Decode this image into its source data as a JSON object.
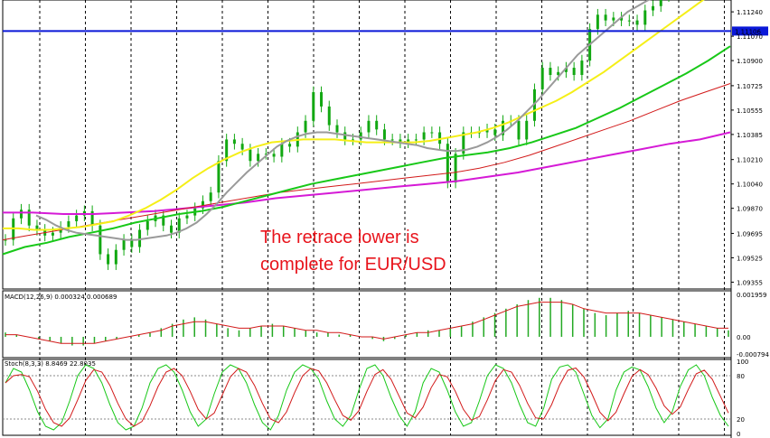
{
  "chart_data": [
    {
      "type": "candlestick",
      "title": "",
      "annotation": [
        "The retrace lower is",
        "complete for EUR/USD"
      ],
      "yticks": [
        "1.11240",
        "1.11070",
        "1.10900",
        "1.10725",
        "1.10555",
        "1.10385",
        "1.10210",
        "1.10040",
        "1.09870",
        "1.09695",
        "1.09525",
        "1.09355"
      ],
      "current_price": "1.11106",
      "ylim": [
        1.0932,
        1.1131
      ],
      "grid": "vertical dashed",
      "colors": {
        "bull_candle": "#12a812",
        "price_line": "#0a18d8",
        "price_label_bg": "#0a18d8",
        "ma_fast": "#9a9a9a",
        "ma_mid": "#f5ef17",
        "ma_slow": "#18c818",
        "ma_long": "#d21a1a",
        "ma_longest": "#d51ad6"
      },
      "price_close": [
        1.0965,
        1.098,
        1.0986,
        1.0975,
        1.0972,
        1.0968,
        1.097,
        1.0974,
        1.0978,
        1.0982,
        1.0985,
        1.0975,
        1.0955,
        1.0948,
        1.0958,
        1.0965,
        1.096,
        1.0972,
        1.0978,
        1.0982,
        1.0975,
        1.097,
        1.098,
        1.0982,
        1.0987,
        1.0992,
        1.0998,
        1.102,
        1.1035,
        1.1032,
        1.1028,
        1.102,
        1.1025,
        1.1025,
        1.1023,
        1.1032,
        1.103,
        1.104,
        1.1048,
        1.1068,
        1.1058,
        1.1045,
        1.104,
        1.1035,
        1.1035,
        1.104,
        1.1048,
        1.1042,
        1.1035,
        1.1035,
        1.1033,
        1.1035,
        1.1035,
        1.104,
        1.104,
        1.1032,
        1.1005,
        1.1025,
        1.104,
        1.104,
        1.104,
        1.1042,
        1.1038,
        1.1048,
        1.1048,
        1.1035,
        1.1048,
        1.107,
        1.1085,
        1.108,
        1.1082,
        1.1085,
        1.108,
        1.109,
        1.1112,
        1.1122,
        1.1118,
        1.112,
        1.1118,
        1.1118,
        1.1115,
        1.1125,
        1.1128,
        1.1135,
        1.114
      ],
      "ma_fast": [
        1.0982,
        1.0979,
        1.0975,
        1.0972,
        1.097,
        1.0969,
        1.0968,
        1.0967,
        1.0966,
        1.0965,
        1.0965,
        1.0966,
        1.0967,
        1.0968,
        1.097,
        1.0973,
        1.0977,
        1.0983,
        1.099,
        1.0998,
        1.1005,
        1.1012,
        1.1018,
        1.1024,
        1.103,
        1.1034,
        1.1037,
        1.1039,
        1.104,
        1.104,
        1.1039,
        1.1038,
        1.1037,
        1.1036,
        1.1035,
        1.1034,
        1.1033,
        1.1032,
        1.1031,
        1.1029,
        1.1028,
        1.1027,
        1.1027,
        1.1028,
        1.103,
        1.1033,
        1.1037,
        1.1042,
        1.1048,
        1.1055,
        1.1062,
        1.107,
        1.1078,
        1.1086,
        1.1094,
        1.11,
        1.1106,
        1.1112,
        1.1118,
        1.1124,
        1.1128,
        1.1132,
        1.1135,
        1.1138,
        1.114
      ],
      "ma_mid": [
        1.0973,
        1.0973,
        1.0972,
        1.0972,
        1.0973,
        1.0974,
        1.0976,
        1.0978,
        1.0982,
        1.0987,
        1.0993,
        1.1,
        1.1008,
        1.1015,
        1.1021,
        1.1026,
        1.103,
        1.1033,
        1.1034,
        1.1035,
        1.1035,
        1.1035,
        1.1034,
        1.1033,
        1.1033,
        1.1033,
        1.1033,
        1.1034,
        1.1036,
        1.1038,
        1.104,
        1.1043,
        1.1047,
        1.1052,
        1.1057,
        1.1062,
        1.1068,
        1.1075,
        1.1082,
        1.109,
        1.1098,
        1.1106,
        1.1114,
        1.1122,
        1.113,
        1.1138,
        1.1145
      ],
      "ma_slow": [
        1.0955,
        1.096,
        1.0963,
        1.0967,
        1.097,
        1.0973,
        1.0977,
        1.098,
        1.0983,
        1.0985,
        1.0988,
        1.0992,
        1.0996,
        1.1,
        1.1004,
        1.1007,
        1.101,
        1.1013,
        1.1016,
        1.1019,
        1.1022,
        1.1024,
        1.1026,
        1.1029,
        1.1033,
        1.1038,
        1.1043,
        1.105,
        1.1057,
        1.1065,
        1.1073,
        1.1081,
        1.109,
        1.11
      ],
      "ma_long": [
        1.0965,
        1.0968,
        1.0971,
        1.0974,
        1.0977,
        1.098,
        1.0983,
        1.0986,
        1.0989,
        1.0992,
        1.0995,
        1.0998,
        1.1,
        1.1002,
        1.1004,
        1.1006,
        1.1008,
        1.101,
        1.1012,
        1.1015,
        1.1019,
        1.1024,
        1.103,
        1.1036,
        1.1042,
        1.1048,
        1.1055,
        1.1062,
        1.1068,
        1.1074
      ],
      "ma_longest": [
        1.0984,
        1.0984,
        1.0983,
        1.0983,
        1.0984,
        1.0985,
        1.0987,
        1.0989,
        1.0991,
        1.0994,
        1.0996,
        1.0998,
        1.1,
        1.1002,
        1.1004,
        1.1006,
        1.1009,
        1.1012,
        1.1016,
        1.102,
        1.1024,
        1.1028,
        1.1032,
        1.1035,
        1.104
      ],
      "vgrid_count": 16
    },
    {
      "type": "histogram+line",
      "label": "MACD(12,26,9) 0.000324 0.000689",
      "yticks": [
        "0.001959",
        "0.00",
        "-0.000794"
      ],
      "ylim": [
        -0.000794,
        0.001959
      ],
      "colors": {
        "hist": "#23a923",
        "signal": "#d21a1a"
      },
      "hist": [
        0.0002,
        0.0001,
        0.0,
        -0.0001,
        -0.0002,
        -0.0003,
        -0.0004,
        -0.0004,
        -0.0003,
        -0.0002,
        -0.0001,
        0.0,
        0.0001,
        0.0002,
        0.0004,
        0.0006,
        0.0008,
        0.0009,
        0.0008,
        0.0006,
        0.0004,
        0.0003,
        0.0004,
        0.0005,
        0.0006,
        0.0005,
        0.0004,
        0.0003,
        0.0002,
        0.0002,
        0.0001,
        0.0001,
        0.0,
        -0.0001,
        -0.0002,
        -0.0001,
        0.0001,
        0.0002,
        0.0003,
        0.0003,
        0.0004,
        0.0005,
        0.0007,
        0.0009,
        0.0011,
        0.0013,
        0.0015,
        0.0017,
        0.0018,
        0.0018,
        0.0017,
        0.0015,
        0.0013,
        0.0011,
        0.001,
        0.0011,
        0.0012,
        0.0011,
        0.001,
        0.0009,
        0.0008,
        0.0007,
        0.0006,
        0.0005,
        0.0004,
        0.0003
      ],
      "signal": [
        0.0001,
        0.0001,
        0.0,
        -0.0001,
        -0.0002,
        -0.0003,
        -0.0003,
        -0.0003,
        -0.0003,
        -0.0002,
        -0.0001,
        0.0,
        0.0001,
        0.0002,
        0.0003,
        0.0005,
        0.0006,
        0.0007,
        0.0007,
        0.0006,
        0.0005,
        0.0004,
        0.0004,
        0.0005,
        0.0005,
        0.0005,
        0.0004,
        0.0003,
        0.0003,
        0.0002,
        0.0002,
        0.0001,
        0.0,
        0.0,
        -0.0001,
        0.0,
        0.0001,
        0.0002,
        0.0002,
        0.0003,
        0.0004,
        0.0005,
        0.0006,
        0.0008,
        0.001,
        0.0012,
        0.0014,
        0.0015,
        0.0016,
        0.0016,
        0.0016,
        0.0015,
        0.0013,
        0.0012,
        0.0011,
        0.0011,
        0.0011,
        0.0011,
        0.001,
        0.0009,
        0.0008,
        0.0007,
        0.0006,
        0.0005,
        0.0004,
        0.0004
      ]
    },
    {
      "type": "line",
      "label": "Stoch(8,3,3) 8.8469 22.8035",
      "yticks": [
        "100",
        "80",
        "20",
        "0"
      ],
      "ylim": [
        0,
        100
      ],
      "levels": [
        80,
        20
      ],
      "colors": {
        "main": "#18c818",
        "signal": "#d21a1a"
      },
      "main": [
        70,
        90,
        85,
        60,
        30,
        10,
        5,
        15,
        45,
        80,
        95,
        90,
        70,
        40,
        15,
        5,
        10,
        35,
        70,
        90,
        95,
        85,
        60,
        30,
        10,
        20,
        55,
        85,
        95,
        90,
        70,
        40,
        15,
        5,
        25,
        60,
        85,
        95,
        90,
        75,
        45,
        20,
        10,
        25,
        60,
        90,
        95,
        80,
        50,
        25,
        10,
        30,
        70,
        90,
        85,
        60,
        30,
        10,
        15,
        45,
        80,
        95,
        90,
        70,
        40,
        15,
        10,
        35,
        75,
        92,
        95,
        85,
        55,
        25,
        8,
        20,
        60,
        85,
        92,
        88,
        65,
        35,
        15,
        30,
        65,
        88,
        95,
        80,
        50,
        25,
        10
      ]
    }
  ]
}
